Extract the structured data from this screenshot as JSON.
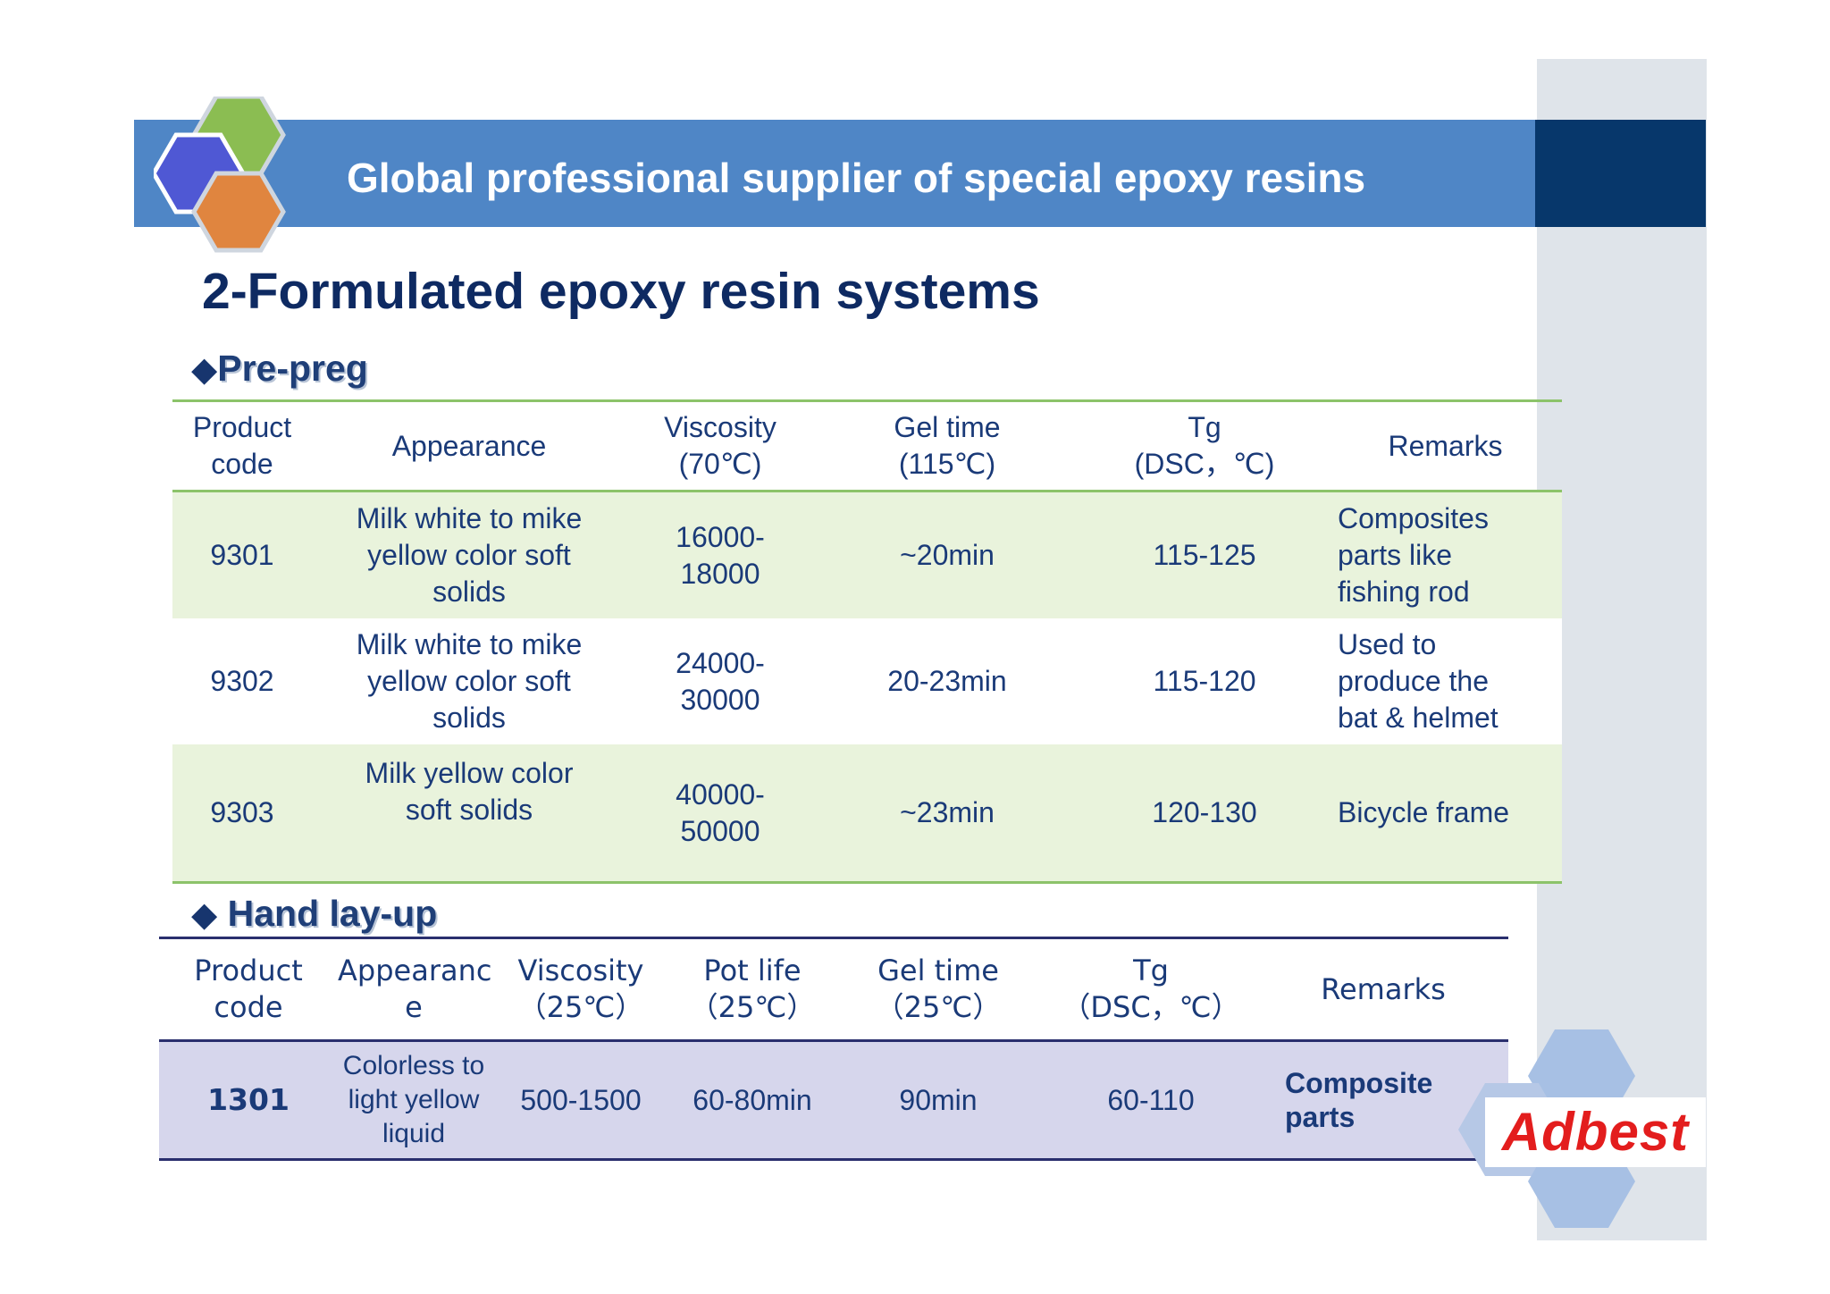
{
  "header": {
    "title": "Global professional supplier of special epoxy resins"
  },
  "slide": {
    "title": "2-Formulated epoxy resin systems"
  },
  "prepreg": {
    "section_label": "Pre-preg",
    "bullet": "◆",
    "columns": [
      [
        "Product",
        "code"
      ],
      [
        "Appearance"
      ],
      [
        "Viscosity",
        "(70℃)"
      ],
      [
        "Gel time",
        "(115℃)"
      ],
      [
        "Tg",
        "(DSC，℃)"
      ],
      [
        "Remarks"
      ]
    ],
    "rows": [
      {
        "code": "9301",
        "appearance": [
          "Milk white to mike",
          "yellow color soft",
          "solids"
        ],
        "viscosity": [
          "16000-",
          "18000"
        ],
        "gel_time": "~20min",
        "tg": "115-125",
        "remarks": [
          "Composites",
          "parts like",
          "fishing rod"
        ]
      },
      {
        "code": "9302",
        "appearance": [
          "Milk white to mike",
          "yellow color soft",
          "solids"
        ],
        "viscosity": [
          "24000-",
          "30000"
        ],
        "gel_time": "20-23min",
        "tg": "115-120",
        "remarks": [
          "Used to",
          "produce the",
          "bat & helmet"
        ]
      },
      {
        "code": "9303",
        "appearance": [
          "Milk yellow color",
          "soft solids"
        ],
        "viscosity": [
          "40000-",
          "50000"
        ],
        "gel_time": "~23min",
        "tg": "120-130",
        "remarks": [
          "Bicycle frame"
        ]
      }
    ]
  },
  "handlayup": {
    "section_label": "Hand lay-up",
    "bullet": "◆",
    "columns": [
      [
        "Product",
        "code"
      ],
      [
        "Appearanc",
        "e"
      ],
      [
        "Viscosity",
        "（25℃）"
      ],
      [
        "Pot life",
        "（25℃）"
      ],
      [
        "Gel time",
        "（25℃）"
      ],
      [
        "Tg",
        "（DSC，℃）"
      ],
      [
        "Remarks"
      ]
    ],
    "rows": [
      {
        "code": "1301",
        "appearance": [
          "Colorless to",
          "light yellow",
          "liquid"
        ],
        "viscosity": "500-1500",
        "pot_life": "60-80min",
        "gel_time": "90min",
        "tg": "60-110",
        "remarks": [
          "Composite",
          "parts"
        ]
      }
    ]
  },
  "brand": {
    "logo_text": "Adbest"
  },
  "colors": {
    "header_blue": "#4f86c6",
    "header_dark": "#07376b",
    "green_rule": "#8cc36a",
    "green_row": "#e9f3dc",
    "lavender_row": "#d6d6ec",
    "brand_red": "#e31d1d"
  }
}
